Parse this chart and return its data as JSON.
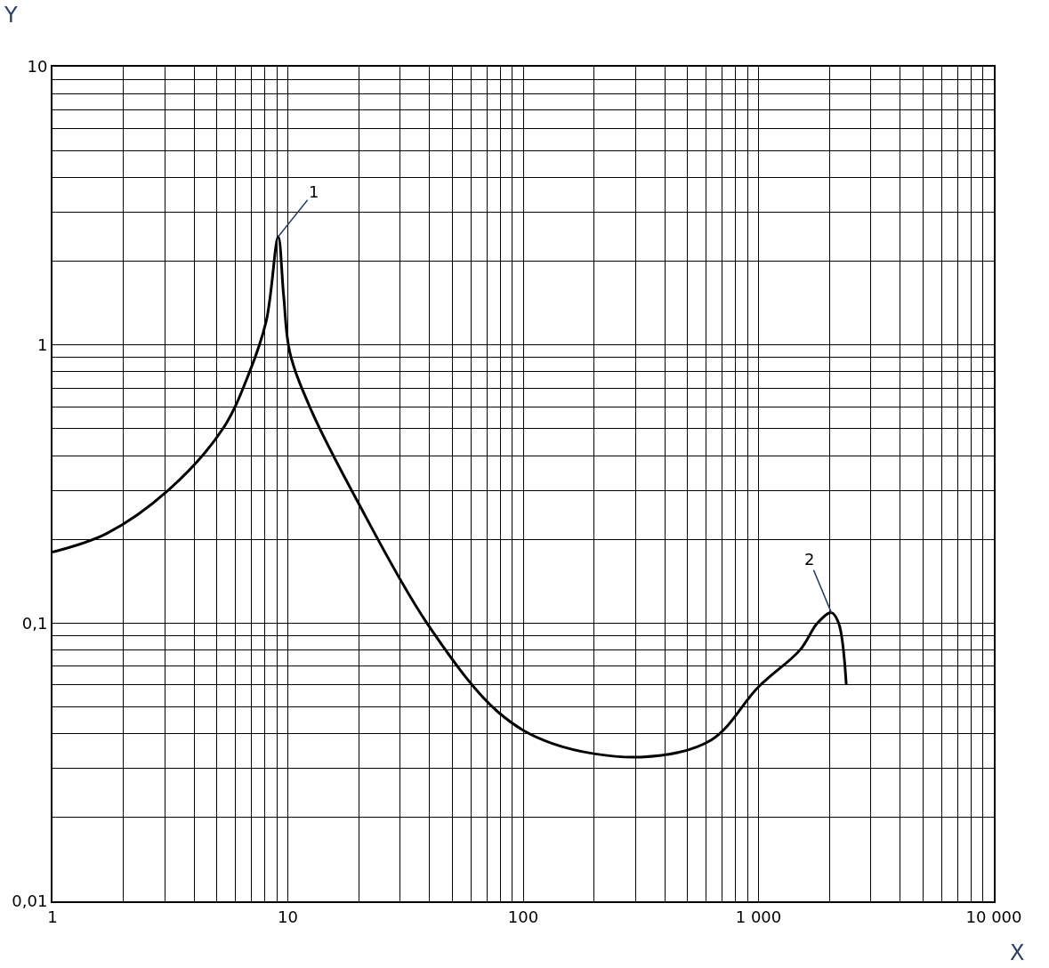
{
  "chart_data": {
    "type": "line",
    "xlabel": "X",
    "ylabel": "Y",
    "log": "xy",
    "grid": true,
    "legend": false,
    "marker": "none",
    "line_style": "solid",
    "x": [
      1,
      1.7,
      3.1,
      5.3,
      6.8,
      8.1,
      9.1,
      9.6,
      10.2,
      12.6,
      19.5,
      39,
      78,
      132,
      316,
      630,
      1000,
      1500,
      1780,
      2040,
      2190,
      2360
    ],
    "series": [
      {
        "color": "#000000",
        "values": [
          0.18,
          0.21,
          0.3,
          0.5,
          0.78,
          1.22,
          2.45,
          1.5,
          0.94,
          0.58,
          0.28,
          0.1,
          0.048,
          0.037,
          0.033,
          0.038,
          0.059,
          0.08,
          0.1,
          0.109,
          0.1,
          0.06
        ]
      }
    ],
    "xlim": [
      1,
      10000
    ],
    "ylim": [
      0.01,
      10
    ],
    "xticks": [
      {
        "value": 1,
        "label": "1"
      },
      {
        "value": 2,
        "label": null
      },
      {
        "value": 3,
        "label": null
      },
      {
        "value": 4,
        "label": null
      },
      {
        "value": 5,
        "label": null
      },
      {
        "value": 6,
        "label": null
      },
      {
        "value": 7,
        "label": null
      },
      {
        "value": 8,
        "label": null
      },
      {
        "value": 9,
        "label": null
      },
      {
        "value": 10,
        "label": "10"
      },
      {
        "value": 20,
        "label": null
      },
      {
        "value": 30,
        "label": null
      },
      {
        "value": 40,
        "label": null
      },
      {
        "value": 50,
        "label": null
      },
      {
        "value": 60,
        "label": null
      },
      {
        "value": 70,
        "label": null
      },
      {
        "value": 80,
        "label": null
      },
      {
        "value": 90,
        "label": null
      },
      {
        "value": 100,
        "label": "100"
      },
      {
        "value": 200,
        "label": null
      },
      {
        "value": 300,
        "label": null
      },
      {
        "value": 400,
        "label": null
      },
      {
        "value": 500,
        "label": null
      },
      {
        "value": 600,
        "label": null
      },
      {
        "value": 700,
        "label": null
      },
      {
        "value": 800,
        "label": null
      },
      {
        "value": 900,
        "label": null
      },
      {
        "value": 1000,
        "label": "1 000"
      },
      {
        "value": 2000,
        "label": null
      },
      {
        "value": 3000,
        "label": null
      },
      {
        "value": 4000,
        "label": null
      },
      {
        "value": 5000,
        "label": null
      },
      {
        "value": 6000,
        "label": null
      },
      {
        "value": 7000,
        "label": null
      },
      {
        "value": 8000,
        "label": null
      },
      {
        "value": 9000,
        "label": null
      },
      {
        "value": 10000,
        "label": "10 000"
      }
    ],
    "yticks": [
      {
        "value": 0.01,
        "label": "0,01"
      },
      {
        "value": 0.02,
        "label": null
      },
      {
        "value": 0.03,
        "label": null
      },
      {
        "value": 0.04,
        "label": null
      },
      {
        "value": 0.05,
        "label": null
      },
      {
        "value": 0.06,
        "label": null
      },
      {
        "value": 0.07,
        "label": null
      },
      {
        "value": 0.08,
        "label": null
      },
      {
        "value": 0.09,
        "label": null
      },
      {
        "value": 0.1,
        "label": "0,1"
      },
      {
        "value": 0.2,
        "label": null
      },
      {
        "value": 0.3,
        "label": null
      },
      {
        "value": 0.4,
        "label": null
      },
      {
        "value": 0.5,
        "label": null
      },
      {
        "value": 0.6,
        "label": null
      },
      {
        "value": 0.7,
        "label": null
      },
      {
        "value": 0.8,
        "label": null
      },
      {
        "value": 0.9,
        "label": null
      },
      {
        "value": 1,
        "label": "1"
      },
      {
        "value": 2,
        "label": null
      },
      {
        "value": 3,
        "label": null
      },
      {
        "value": 4,
        "label": null
      },
      {
        "value": 5,
        "label": null
      },
      {
        "value": 6,
        "label": null
      },
      {
        "value": 7,
        "label": null
      },
      {
        "value": 8,
        "label": null
      },
      {
        "value": 9,
        "label": null
      },
      {
        "value": 10,
        "label": "10"
      }
    ],
    "annotations": [
      {
        "text": "1",
        "x": 9.1,
        "y": 2.45
      },
      {
        "text": "2",
        "x": 2040,
        "y": 0.109
      }
    ]
  }
}
